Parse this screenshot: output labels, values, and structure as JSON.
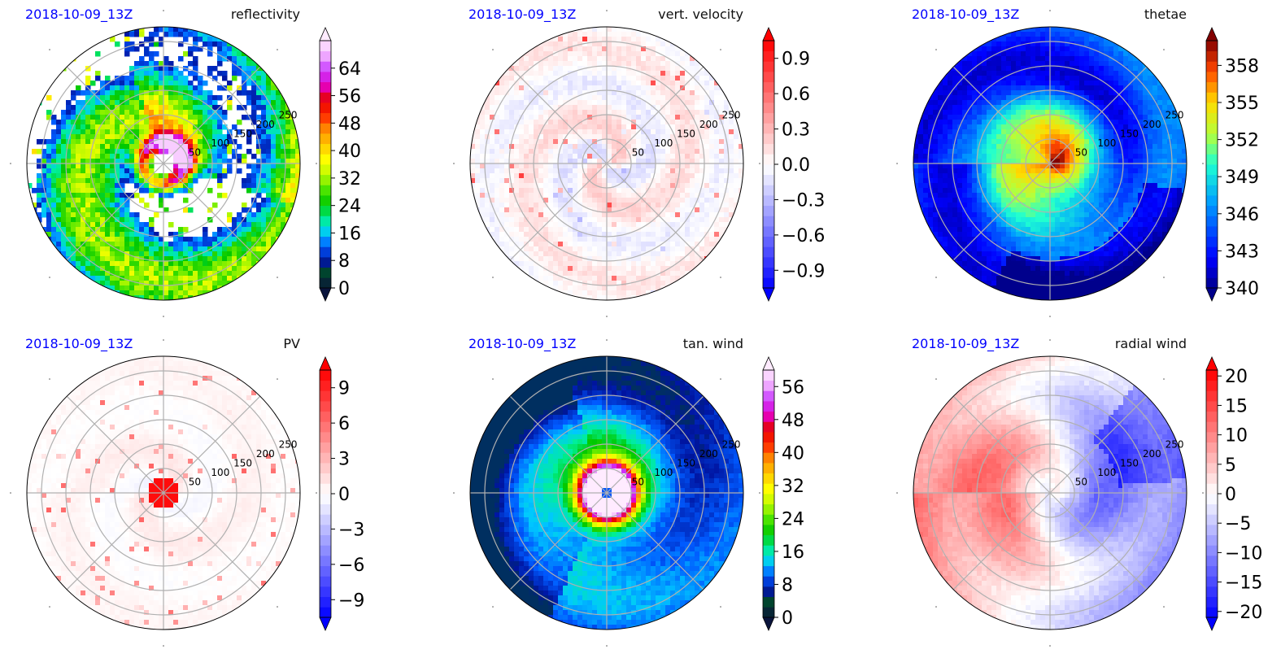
{
  "chart_data": [
    {
      "type": "heatmap",
      "panel": "polar",
      "timestamp": "2018-10-09_13Z",
      "variable": "reflectivity",
      "radial_ticks": [
        "50",
        "100",
        "150",
        "200",
        "250"
      ],
      "colorbar": {
        "min": 0,
        "max": 72,
        "ticks": [
          "0",
          "8",
          "16",
          "24",
          "32",
          "40",
          "48",
          "56",
          "64"
        ],
        "extend": "both",
        "colormap": "radar_reflectivity"
      },
      "features": {
        "eye_radius_km": 40,
        "structure": "spiral rainbands, dense eyewall ring, scattered cells at outer radii"
      }
    },
    {
      "type": "heatmap",
      "panel": "polar",
      "timestamp": "2018-10-09_13Z",
      "variable": "vert. velocity",
      "radial_ticks": [
        "50",
        "100",
        "150",
        "200",
        "250"
      ],
      "colorbar": {
        "min": -1.05,
        "max": 1.05,
        "ticks": [
          "−0.9",
          "−0.6",
          "−0.3",
          "0.0",
          "0.3",
          "0.6",
          "0.9"
        ],
        "extend": "both",
        "colormap": "bwr"
      },
      "features": {
        "structure": "mostly near zero, spiral bands of updrafts (red) and weak downdrafts (blue)"
      }
    },
    {
      "type": "heatmap",
      "panel": "polar",
      "timestamp": "2018-10-09_13Z",
      "variable": "thetae",
      "radial_ticks": [
        "50",
        "100",
        "150",
        "200",
        "250"
      ],
      "colorbar": {
        "min": 340,
        "max": 360,
        "ticks": [
          "340",
          "343",
          "346",
          "349",
          "352",
          "355",
          "358"
        ],
        "extend": "both",
        "colormap": "jet"
      },
      "features": {
        "center_value": 358,
        "structure": "warm core of high theta-e, decreasing outward to ~340 at outer radii"
      }
    },
    {
      "type": "heatmap",
      "panel": "polar",
      "timestamp": "2018-10-09_13Z",
      "variable": "PV",
      "radial_ticks": [
        "50",
        "100",
        "150",
        "200",
        "250"
      ],
      "colorbar": {
        "min": -10.5,
        "max": 10.5,
        "ticks": [
          "−9",
          "−6",
          "−3",
          "0",
          "3",
          "6",
          "9"
        ],
        "extend": "both",
        "colormap": "bwr"
      },
      "features": {
        "center_value": 10,
        "structure": "strong positive PV core, weak spiral filaments outside"
      }
    },
    {
      "type": "heatmap",
      "panel": "polar",
      "timestamp": "2018-10-09_13Z",
      "variable": "tan. wind",
      "radial_ticks": [
        "50",
        "100",
        "150",
        "200",
        "250"
      ],
      "colorbar": {
        "min": 0,
        "max": 60,
        "ticks": [
          "0",
          "8",
          "16",
          "24",
          "32",
          "40",
          "48",
          "56"
        ],
        "extend": "both",
        "colormap": "radar_reflectivity"
      },
      "features": {
        "rmw_km": 25,
        "max_value": 50,
        "structure": "ring of maximum wind near center, decreasing outward"
      }
    },
    {
      "type": "heatmap",
      "panel": "polar",
      "timestamp": "2018-10-09_13Z",
      "variable": "radial wind",
      "radial_ticks": [
        "50",
        "100",
        "150",
        "200",
        "250"
      ],
      "colorbar": {
        "min": -21,
        "max": 21,
        "ticks": [
          "−20",
          "−15",
          "−10",
          "−5",
          "0",
          "5",
          "10",
          "15",
          "20"
        ],
        "extend": "both",
        "colormap": "bwr"
      },
      "features": {
        "structure": "outflow (positive) on west half, inflow (negative) on east half"
      }
    }
  ],
  "colors": {
    "date_text": "#0000ff",
    "grid": "#b0b0b0",
    "axis": "#000000",
    "background": "#ffffff"
  }
}
